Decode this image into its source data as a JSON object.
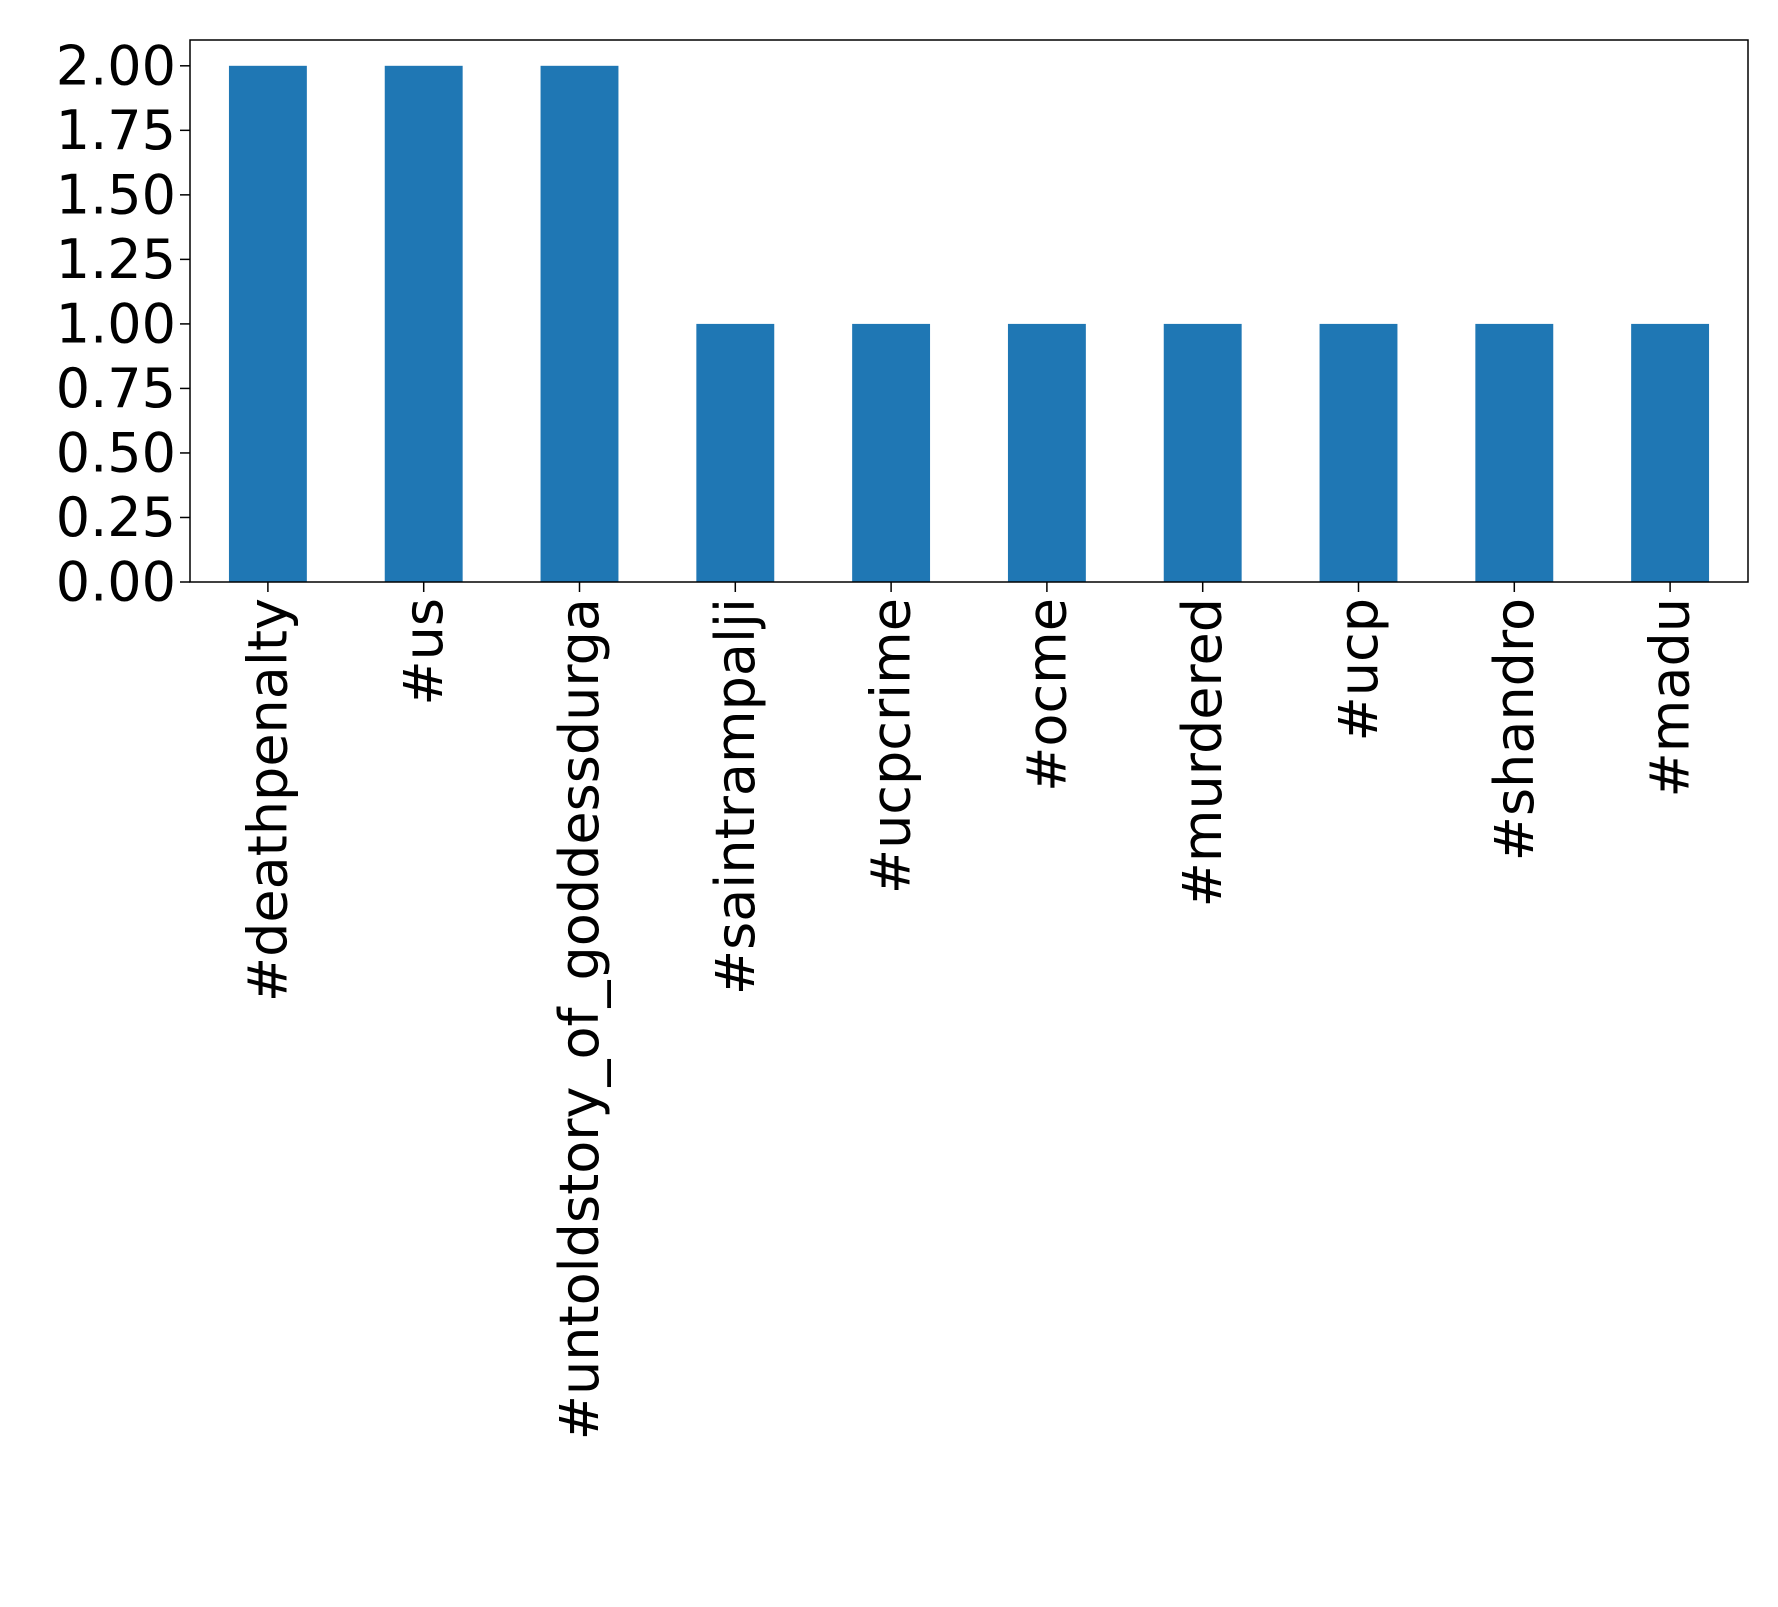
{
  "chart_data": {
    "type": "bar",
    "title": "",
    "xlabel": "",
    "ylabel": "",
    "categories": [
      "#deathpenalty",
      "#us",
      "#untoldstory_of_goddessdurga",
      "#saintrampalji",
      "#ucpcrime",
      "#ocme",
      "#murdered",
      "#ucp",
      "#shandro",
      "#madu"
    ],
    "values": [
      2,
      2,
      2,
      1,
      1,
      1,
      1,
      1,
      1,
      1
    ],
    "ylim": [
      0,
      2.1
    ],
    "yticks": [
      "0.00",
      "0.25",
      "0.50",
      "0.75",
      "1.00",
      "1.25",
      "1.50",
      "1.75",
      "2.00"
    ],
    "bar_color": "#1f77b4",
    "grid": false,
    "legend": "none"
  }
}
